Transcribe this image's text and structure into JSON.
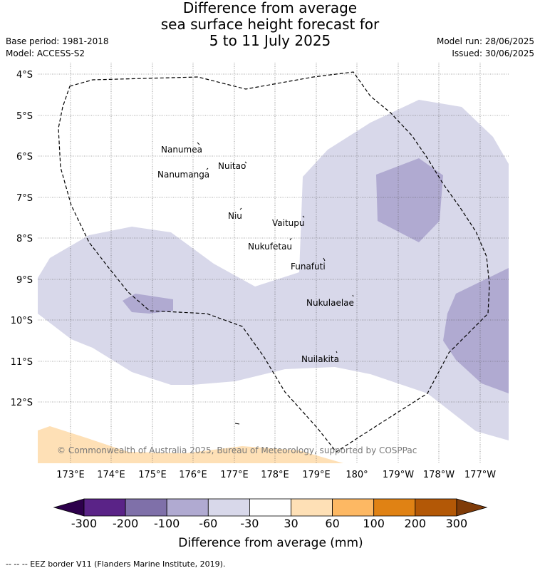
{
  "title": {
    "line1": "Difference from average",
    "line2": "sea surface height forecast for",
    "line3": "5 to 11 July 2025"
  },
  "meta_left": {
    "base_period": "Base period: 1981-2018",
    "model": "Model: ACCESS-S2"
  },
  "meta_right": {
    "model_run": "Model run: 28/06/2025",
    "issued": "Issued: 30/06/2025"
  },
  "lat_labels": [
    "4°S",
    "5°S",
    "6°S",
    "7°S",
    "8°S",
    "9°S",
    "10°S",
    "11°S",
    "12°S"
  ],
  "lon_labels": [
    "173°E",
    "174°E",
    "175°E",
    "176°E",
    "177°E",
    "178°E",
    "179°E",
    "180°",
    "179°W",
    "178°W",
    "177°W"
  ],
  "islands": [
    {
      "name": "Nanumea"
    },
    {
      "name": "Nuitao"
    },
    {
      "name": "Nanumanga"
    },
    {
      "name": "Niu"
    },
    {
      "name": "Vaitupu"
    },
    {
      "name": "Nukufetau"
    },
    {
      "name": "Funafuti"
    },
    {
      "name": "Nukulaelae"
    },
    {
      "name": "Nuilakita"
    }
  ],
  "copyright": "© Commonwealth of Australia 2025, Bureau of Meteorology, supported by COSPPac",
  "colorbar": {
    "ticks": [
      "-300",
      "-200",
      "-100",
      "-60",
      "-30",
      "30",
      "60",
      "100",
      "200",
      "300"
    ],
    "colors": [
      "#5a2387",
      "#7f70a9",
      "#b0aad1",
      "#d8d8ea",
      "#ffffff",
      "#fee0b6",
      "#fdb863",
      "#e08214",
      "#b35806"
    ],
    "end_low": "#2d004b",
    "end_high": "#7f3b08",
    "label": "Difference from average (mm)"
  },
  "footnote": "--  --  -- EEZ border V11 (Flanders Marine Institute, 2019)."
}
